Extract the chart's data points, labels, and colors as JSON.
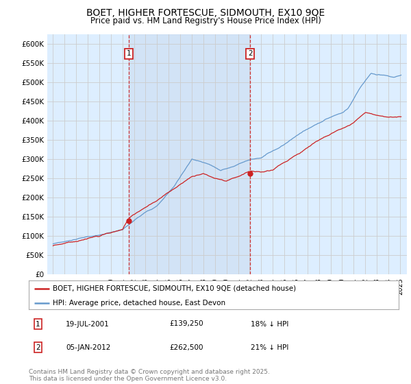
{
  "title": "BOET, HIGHER FORTESCUE, SIDMOUTH, EX10 9QE",
  "subtitle": "Price paid vs. HM Land Registry's House Price Index (HPI)",
  "title_fontsize": 10,
  "subtitle_fontsize": 8.5,
  "ylim": [
    0,
    625000
  ],
  "yticks": [
    0,
    50000,
    100000,
    150000,
    200000,
    250000,
    300000,
    350000,
    400000,
    450000,
    500000,
    550000,
    600000
  ],
  "ytick_labels": [
    "£0",
    "£50K",
    "£100K",
    "£150K",
    "£200K",
    "£250K",
    "£300K",
    "£350K",
    "£400K",
    "£450K",
    "£500K",
    "£550K",
    "£600K"
  ],
  "hpi_color": "#6699cc",
  "price_color": "#cc2222",
  "vline_color": "#cc2222",
  "grid_color": "#cccccc",
  "bg_color": "#ddeeff",
  "shade_color": "#ccddf0",
  "legend_line1": "BOET, HIGHER FORTESCUE, SIDMOUTH, EX10 9QE (detached house)",
  "legend_line2": "HPI: Average price, detached house, East Devon",
  "table_row1": [
    "1",
    "19-JUL-2001",
    "£139,250",
    "18% ↓ HPI"
  ],
  "table_row2": [
    "2",
    "05-JAN-2012",
    "£262,500",
    "21% ↓ HPI"
  ],
  "footnote": "Contains HM Land Registry data © Crown copyright and database right 2025.\nThis data is licensed under the Open Government Licence v3.0.",
  "footnote_fontsize": 6.5,
  "marker1_x": 2001.54,
  "marker2_x": 2012.04,
  "marker1_price": 139250,
  "marker2_price": 262500
}
